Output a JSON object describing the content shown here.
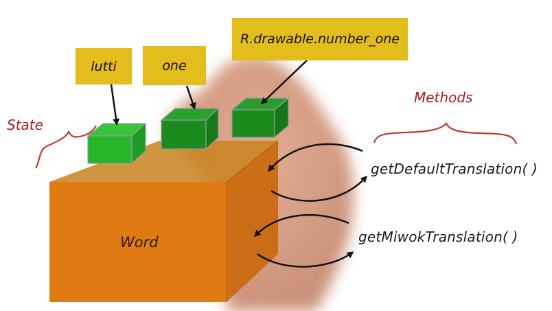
{
  "diagram": {
    "labels": {
      "lutti": "lutti",
      "one": "one",
      "resource": "R.drawable.number_one"
    },
    "state_label": "State",
    "methods_label": "Methods",
    "object_label": "Word",
    "methods": [
      "getDefaultTranslation( )",
      "getMiwokTranslation( )"
    ]
  },
  "colors": {
    "label_box": "#e3bd1b",
    "cube_orange": "#e07a12",
    "green_block": "#1fa51f",
    "red_annotation": "#b01a1a"
  }
}
